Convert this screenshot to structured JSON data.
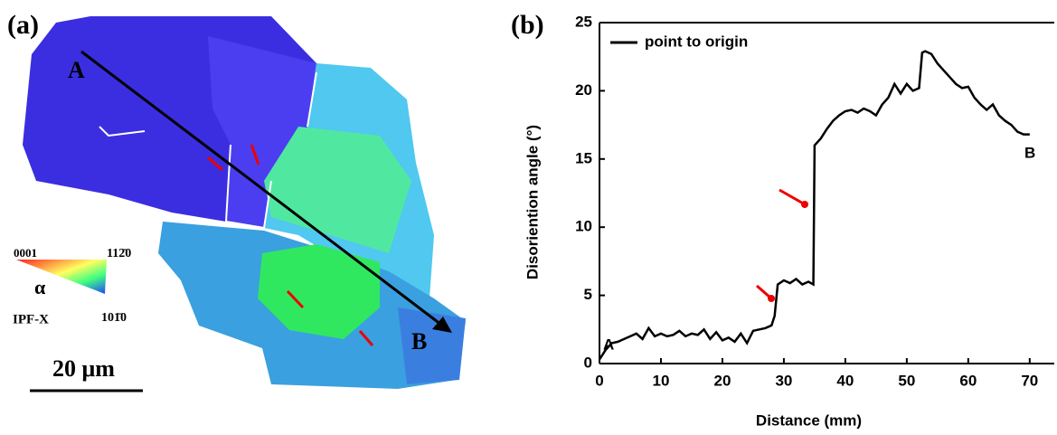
{
  "panel_a": {
    "label": "(a)",
    "point_a": "A",
    "point_b": "B",
    "ipf_corner_1": "0001",
    "ipf_corner_2": "112̄0",
    "ipf_corner_3": "101̄0",
    "phase": "α",
    "ipf_direction": "IPF-X",
    "scale_bar": "20 μm"
  },
  "chart_data": {
    "type": "line",
    "panel_label": "(b)",
    "x_label": "Distance (mm)",
    "y_label": "Disoriention angle (°)",
    "x": [
      0,
      1,
      2,
      3,
      4,
      5,
      6,
      7,
      8,
      9,
      10,
      11,
      12,
      13,
      14,
      15,
      16,
      17,
      18,
      19,
      20,
      21,
      22,
      23,
      24,
      25,
      26,
      27,
      28,
      28.5,
      29,
      30,
      31,
      32,
      33,
      34,
      34.8,
      35,
      36,
      37,
      38,
      39,
      40,
      41,
      42,
      43,
      44,
      45,
      46,
      47,
      48,
      49,
      50,
      51,
      52,
      52.5,
      53,
      54,
      55,
      56,
      57,
      58,
      59,
      60,
      61,
      62,
      63,
      64,
      65,
      66,
      67,
      68,
      69,
      70
    ],
    "series": [
      {
        "name": "point to origin",
        "color": "#000000",
        "values": [
          0.3,
          1,
          1.5,
          1.6,
          1.8,
          2,
          2.2,
          1.8,
          2.6,
          2,
          2.2,
          2,
          2.1,
          2.4,
          2,
          2.2,
          2.1,
          2.5,
          1.8,
          2.3,
          1.7,
          1.9,
          1.6,
          2.2,
          1.5,
          2.4,
          2.5,
          2.6,
          2.8,
          3.5,
          5.8,
          6.1,
          5.9,
          6.2,
          5.8,
          6.0,
          5.8,
          16,
          16.5,
          17.2,
          17.8,
          18.2,
          18.5,
          18.6,
          18.4,
          18.7,
          18.5,
          18.2,
          19,
          19.5,
          20.5,
          19.8,
          20.5,
          20,
          20.2,
          22.8,
          22.9,
          22.7,
          22,
          21.5,
          21,
          20.5,
          20.2,
          20.3,
          19.5,
          19,
          18.6,
          19,
          18.2,
          17.8,
          17.5,
          17,
          16.8,
          16.8
        ]
      }
    ],
    "annotations": [
      "A",
      "B"
    ],
    "xlim": [
      0,
      74
    ],
    "ylim": [
      0,
      25
    ],
    "xticks": [
      0,
      10,
      20,
      30,
      40,
      50,
      60,
      70
    ],
    "yticks": [
      0,
      5,
      10,
      15,
      20,
      25
    ],
    "legend": "upper left"
  }
}
